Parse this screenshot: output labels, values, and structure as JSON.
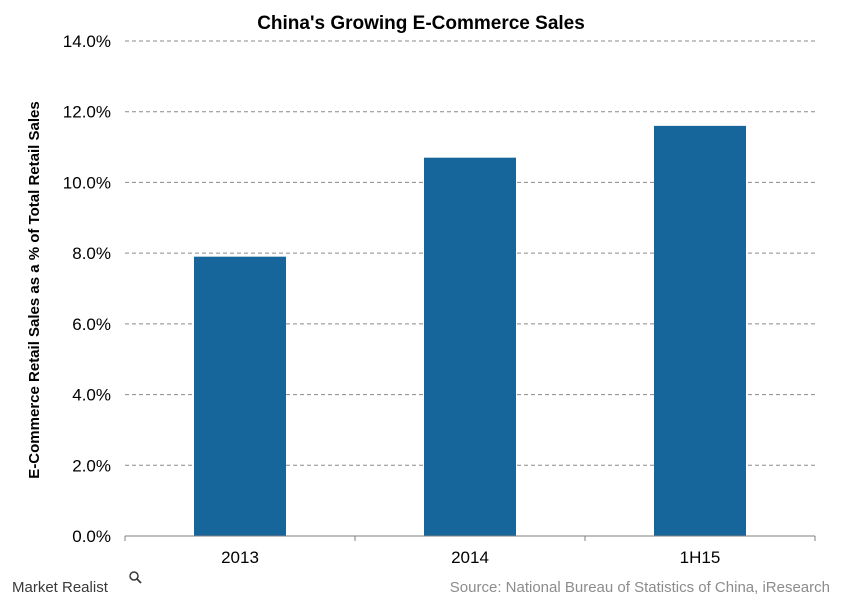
{
  "chart_data": {
    "type": "bar",
    "title": "China's Growing E-Commerce Sales",
    "xlabel": "",
    "ylabel": "E-Commerce Retail Sales as a % of Total Retail Sales",
    "categories": [
      "2013",
      "2014",
      "1H15"
    ],
    "values": [
      7.9,
      10.7,
      11.6
    ],
    "ylim": [
      0,
      14
    ],
    "yticks": [
      0,
      2,
      4,
      6,
      8,
      10,
      12,
      14
    ],
    "ytick_labels": [
      "0.0%",
      "2.0%",
      "4.0%",
      "6.0%",
      "8.0%",
      "10.0%",
      "12.0%",
      "14.0%"
    ],
    "grid": "horizontal dashed",
    "legend": "none",
    "bar_color": "#17669b"
  },
  "footer": {
    "source": "Source: National Bureau of Statistics of China, iResearch",
    "brand": "Market Realist",
    "brand_icon": "magnifier-icon"
  }
}
